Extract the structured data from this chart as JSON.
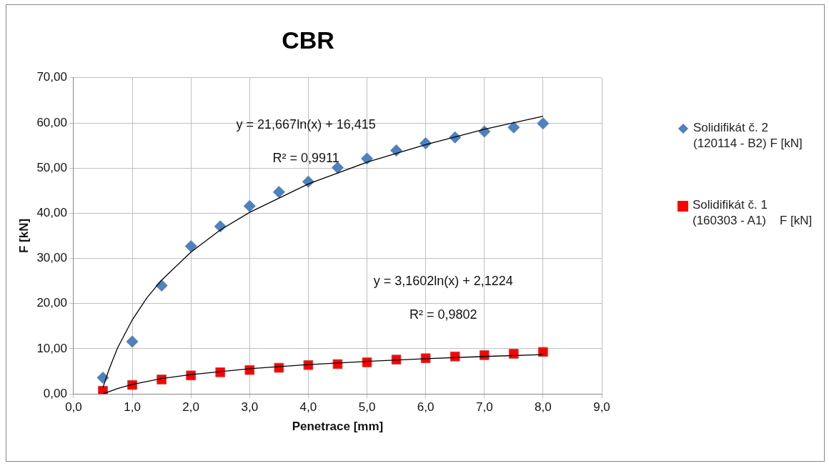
{
  "chart_data": {
    "type": "scatter",
    "title": "CBR",
    "xlabel": "Penetrace [mm]",
    "ylabel": "F [kN]",
    "xlim": [
      0,
      9
    ],
    "xticks": [
      {
        "value": 0,
        "label": "0,0"
      },
      {
        "value": 1,
        "label": "1,0"
      },
      {
        "value": 2,
        "label": "2,0"
      },
      {
        "value": 3,
        "label": "3,0"
      },
      {
        "value": 4,
        "label": "4,0"
      },
      {
        "value": 5,
        "label": "5,0"
      },
      {
        "value": 6,
        "label": "6,0"
      },
      {
        "value": 7,
        "label": "7,0"
      },
      {
        "value": 8,
        "label": "8,0"
      },
      {
        "value": 9,
        "label": "9,0"
      }
    ],
    "ylim": [
      0,
      70
    ],
    "yticks": [
      {
        "value": 0,
        "label": "0,00"
      },
      {
        "value": 10,
        "label": "10,00"
      },
      {
        "value": 20,
        "label": "20,00"
      },
      {
        "value": 30,
        "label": "30,00"
      },
      {
        "value": 40,
        "label": "40,00"
      },
      {
        "value": 50,
        "label": "50,00"
      },
      {
        "value": 60,
        "label": "60,00"
      },
      {
        "value": 70,
        "label": "70,00"
      }
    ],
    "grid": true,
    "legend": "right",
    "series": [
      {
        "name": "Solidifikát č. 2 (120114 - B2) F [kN]",
        "color": "#4f81bd",
        "marker": "diamond",
        "x": [
          0.5,
          1,
          1.5,
          2,
          2.5,
          3,
          3.5,
          4,
          4.5,
          5,
          5.5,
          6,
          6.5,
          7,
          7.5,
          8
        ],
        "values": [
          3.6,
          11.6,
          24.0,
          32.7,
          37.1,
          41.6,
          44.7,
          47.0,
          50.1,
          52.1,
          53.9,
          55.5,
          56.8,
          58.1,
          59.0,
          59.9
        ]
      },
      {
        "name": "Solidifikát č. 1 (160303 - A1)    F [kN]",
        "color": "#ff0000",
        "marker": "square",
        "x": [
          0.5,
          1,
          1.5,
          2,
          2.5,
          3,
          3.5,
          4,
          4.5,
          5,
          5.5,
          6,
          6.5,
          7,
          7.5,
          8
        ],
        "values": [
          0.7,
          2.0,
          3.2,
          4.1,
          4.8,
          5.3,
          5.8,
          6.4,
          6.6,
          7.0,
          7.6,
          7.9,
          8.3,
          8.6,
          8.9,
          9.3
        ]
      },
      {
        "type": "line",
        "color": "#000000",
        "marker": "none",
        "x": [
          0.5,
          0.6,
          0.75,
          1,
          1.25,
          1.5,
          2,
          2.5,
          3,
          4,
          5,
          6,
          7,
          8
        ],
        "values": [
          1.4,
          5.3,
          10.2,
          16.4,
          21.3,
          25.2,
          31.4,
          36.3,
          40.2,
          46.5,
          51.3,
          55.2,
          58.6,
          61.5
        ]
      },
      {
        "type": "line",
        "color": "#000000",
        "marker": "none",
        "x": [
          0.5,
          0.75,
          1,
          1.5,
          2,
          3,
          4,
          5,
          6,
          7,
          8
        ],
        "values": [
          0.0,
          1.2,
          2.1,
          3.4,
          4.3,
          5.6,
          6.5,
          7.2,
          7.8,
          8.3,
          8.7
        ]
      }
    ],
    "annotations": [
      "y = 21,667ln(x) + 16,415",
      "R² = 0,9911",
      "y = 3,1602ln(x) + 2,1224",
      "R² = 0,9802"
    ]
  }
}
